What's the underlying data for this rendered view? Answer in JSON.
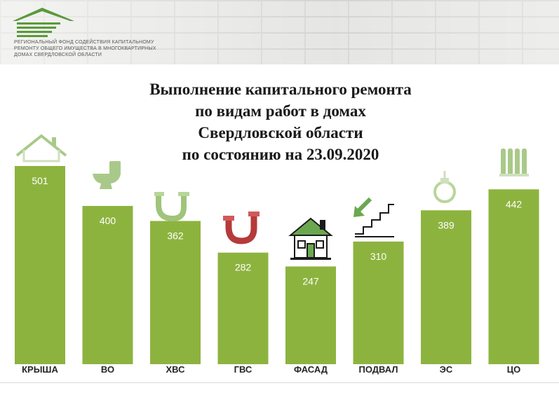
{
  "org": {
    "lines": [
      "Региональный фонд содействия капитальному",
      "ремонту общего имущества в многоквартирных",
      "домах Свердловской области"
    ]
  },
  "chart_data": {
    "type": "bar",
    "title_lines": [
      "Выполнение капитального ремонта",
      "по видам работ в домах",
      "Свердловской области",
      "по состоянию на 23.09.2020"
    ],
    "categories": [
      "КРЫША",
      "ВО",
      "ХВС",
      "ГВС",
      "ФАСАД",
      "ПОДВАЛ",
      "ЭС",
      "ЦО"
    ],
    "values": [
      501,
      400,
      362,
      282,
      247,
      310,
      389,
      442
    ],
    "icons": [
      "roof-icon",
      "toilet-icon",
      "cold-water-pipe-icon",
      "hot-water-pipe-icon",
      "house-facade-icon",
      "basement-stairs-icon",
      "light-bulb-icon",
      "radiator-icon"
    ],
    "xlabel": "",
    "ylabel": "",
    "ylim": [
      0,
      560
    ],
    "grid": false,
    "legend": "none",
    "bar_color": "#8db33f"
  }
}
